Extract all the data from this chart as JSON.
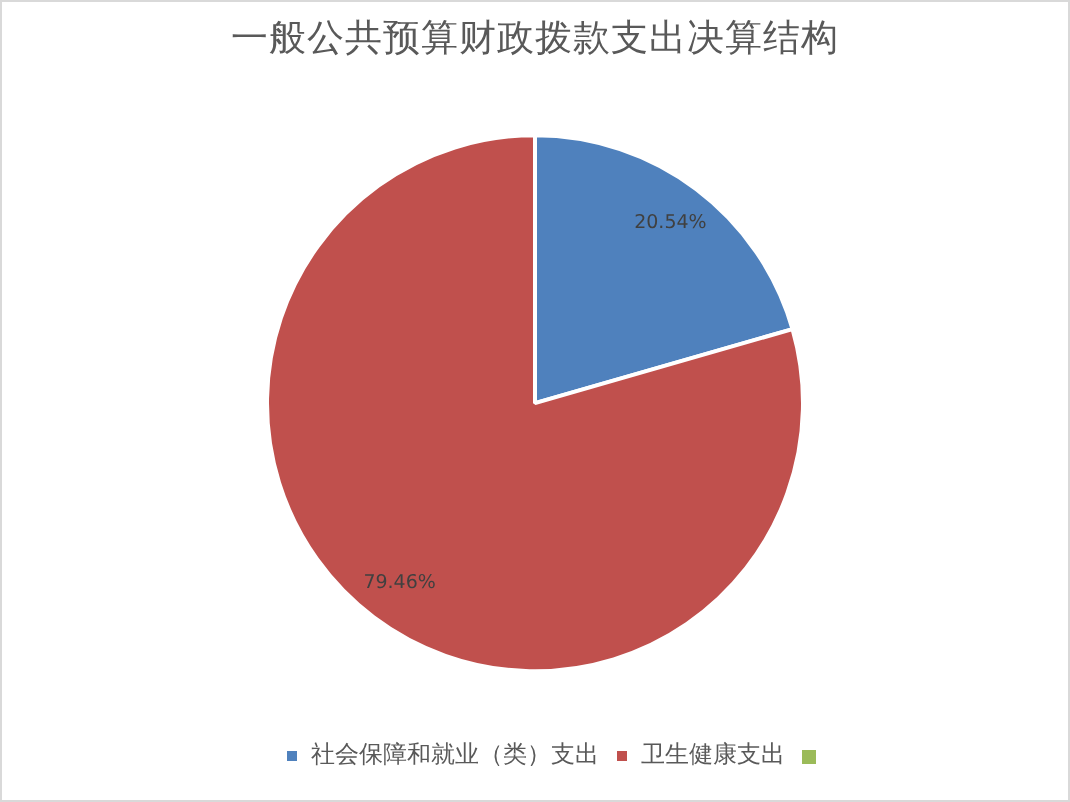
{
  "chart_data": {
    "type": "pie",
    "title": "一般公共预算财政拨款支出决算结构",
    "categories": [
      "社会保障和就业（类）支出",
      "卫生健康支出"
    ],
    "values": [
      20.54,
      79.46
    ],
    "colors": [
      "#4f81bd",
      "#c0504d"
    ],
    "value_labels": [
      "20.54%",
      "79.46%"
    ],
    "legend": "bottom"
  }
}
